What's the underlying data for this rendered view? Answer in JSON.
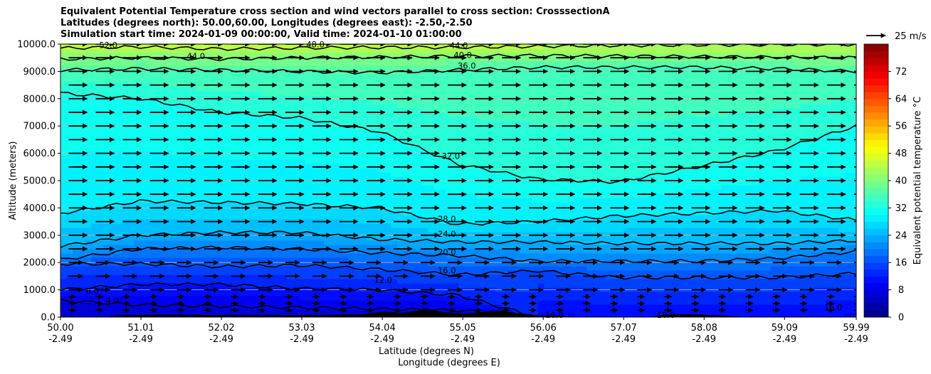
{
  "chart_data": {
    "type": "cross-section",
    "title_lines": [
      "Equivalent Potential Temperature cross section and wind vectors parallel to cross section: CrosssectionA",
      "Latitudes (degrees north): 50.00,60.00, Longitudes (degrees east): -2.50,-2.50",
      "Simulation start time: 2024-01-09 00:00:00, Valid time: 2024-01-10 01:00:00"
    ],
    "xlabel_lines": [
      "Latitude (degrees N)",
      "Longitude (degrees E)"
    ],
    "ylabel": "Altitude (meters)",
    "x_tick_labels": [
      [
        "50.00",
        "-2.49"
      ],
      [
        "51.01",
        "-2.49"
      ],
      [
        "52.02",
        "-2.49"
      ],
      [
        "53.03",
        "-2.49"
      ],
      [
        "54.04",
        "-2.49"
      ],
      [
        "55.05",
        "-2.49"
      ],
      [
        "56.06",
        "-2.49"
      ],
      [
        "57.07",
        "-2.49"
      ],
      [
        "58.08",
        "-2.49"
      ],
      [
        "59.09",
        "-2.49"
      ],
      [
        "59.99",
        "-2.49"
      ]
    ],
    "xlim": [
      50.0,
      59.99
    ],
    "y_ticks": [
      0,
      1000,
      2000,
      3000,
      4000,
      5000,
      6000,
      7000,
      8000,
      9000,
      10000
    ],
    "y_tick_labels": [
      "0.0",
      "1000.0",
      "2000.0",
      "3000.0",
      "4000.0",
      "5000.0",
      "6000.0",
      "7000.0",
      "8000.0",
      "9000.0",
      "10000.0"
    ],
    "ylim": [
      0,
      10000
    ],
    "grid": "horizontal",
    "colorbar": {
      "label": "Equivalent potential temperature $^\\circ$C",
      "range": [
        0,
        80
      ],
      "step": 2,
      "ticks": [
        0,
        8,
        16,
        24,
        32,
        40,
        48,
        56,
        64,
        72
      ],
      "tick_labels": [
        "0",
        "8",
        "16",
        "24",
        "32",
        "40",
        "48",
        "56",
        "64",
        "72"
      ],
      "colormap": "jet"
    },
    "quiver_key": "25 m/s",
    "contour_labels": [
      "52.0",
      "48.0",
      "44.0",
      "44.0",
      "40.0",
      "36.0",
      "32.0",
      "28.0",
      "24.0",
      "20.0",
      "16.0",
      "12.0",
      "8.0",
      "4.0",
      "16.0",
      "16.0",
      "16.0"
    ],
    "contours": [
      {
        "level": 44,
        "z": [
          9850,
          9900,
          9820,
          9860,
          9880,
          9880,
          9920,
          9950,
          9970,
          9980,
          9990
        ]
      },
      {
        "level": 40,
        "z": [
          9450,
          9500,
          9450,
          9500,
          9520,
          9560,
          9580,
          9560,
          9540,
          9520,
          9500
        ]
      },
      {
        "level": 36,
        "z": [
          9050,
          9100,
          9050,
          9000,
          8950,
          9050,
          9150,
          9150,
          9150,
          9100,
          9000
        ]
      },
      {
        "level": 32,
        "z": [
          8200,
          8000,
          7500,
          7300,
          6800,
          5600,
          5050,
          4950,
          5500,
          6100,
          7000
        ]
      },
      {
        "level": 28,
        "z": [
          3800,
          4250,
          4200,
          4150,
          4000,
          3400,
          3500,
          3700,
          3800,
          3900,
          3550
        ]
      },
      {
        "level": 24,
        "z": [
          2600,
          3000,
          3100,
          3100,
          2850,
          2750,
          2750,
          2700,
          2700,
          2700,
          2800
        ]
      },
      {
        "level": 20,
        "z": [
          2100,
          2500,
          2550,
          2500,
          2350,
          2250,
          2050,
          2050,
          2050,
          2150,
          2400
        ]
      },
      {
        "level": 16,
        "z": [
          1950,
          1950,
          1850,
          1900,
          1750,
          1550,
          1700,
          1450,
          1450,
          1450,
          1600
        ]
      },
      {
        "level": 12,
        "z": [
          1000,
          1200,
          1200,
          1050,
          1000,
          800,
          0,
          0,
          0,
          0,
          0
        ]
      },
      {
        "level": 8,
        "z": [
          600,
          450,
          400,
          350,
          300,
          250,
          0,
          0,
          0,
          0,
          0
        ]
      }
    ],
    "wind_vectors": {
      "direction": "parallel",
      "x_step": 0.34,
      "z_levels": [
        250,
        500,
        750,
        1000,
        1500,
        2000,
        2500,
        3000,
        3500,
        4000,
        4500,
        5000,
        5500,
        6000,
        6500,
        7000,
        7500,
        8000,
        8500,
        9000,
        9500,
        10000
      ]
    }
  }
}
